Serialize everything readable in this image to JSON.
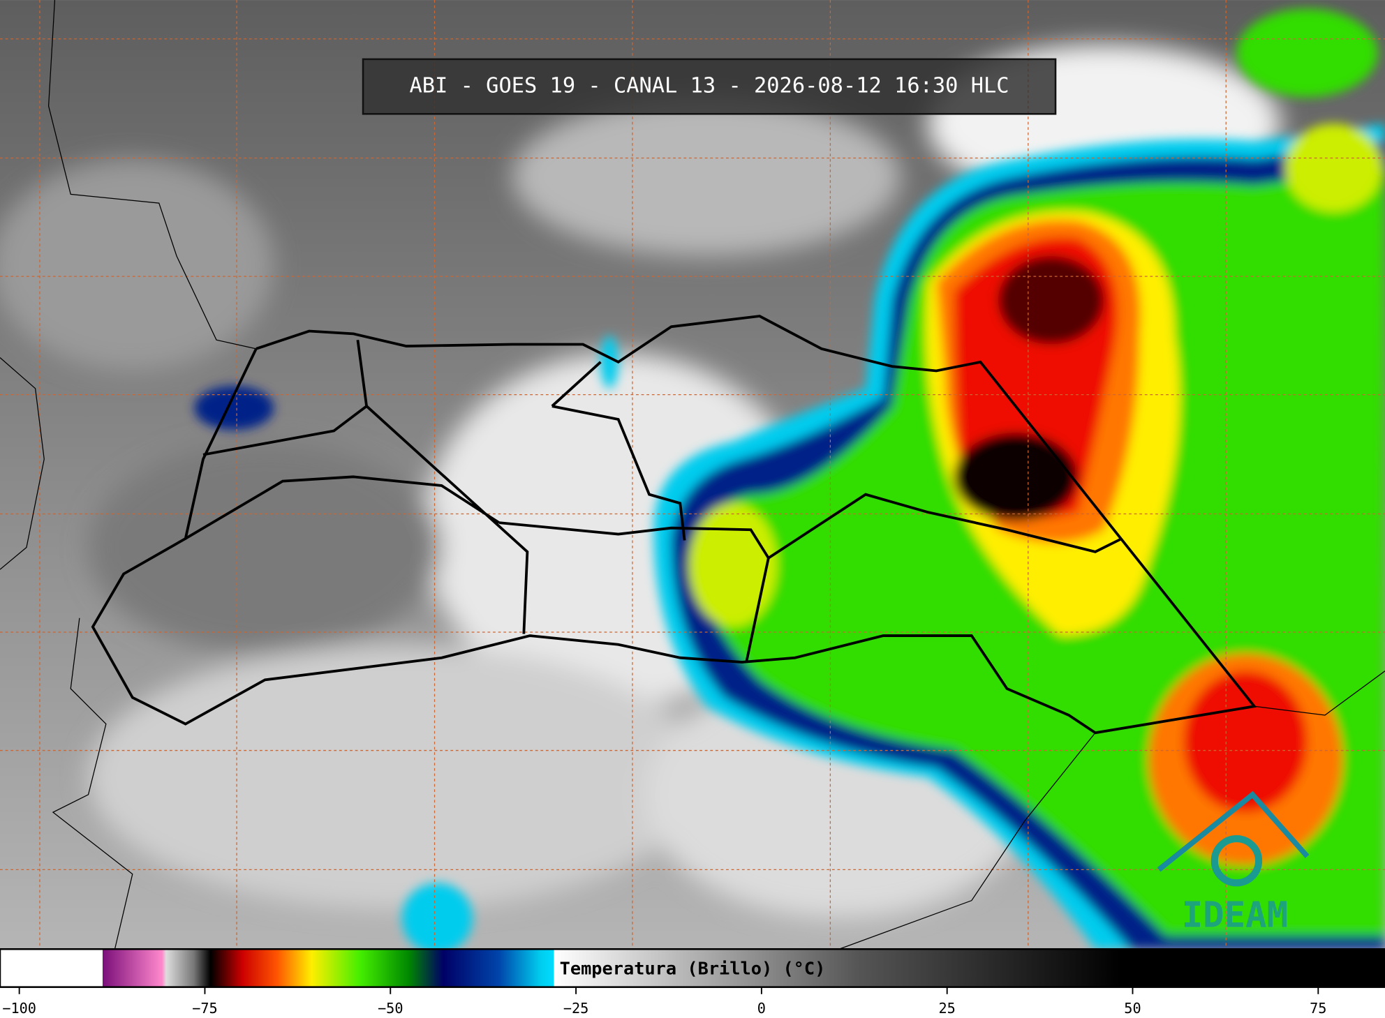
{
  "title": "ABI - GOES 19 - CANAL 13 - 2026-08-12 16:30 HLC",
  "colorbar": {
    "label": "Temperatura (Brillo) (°C)",
    "xlim": [
      -102.6,
      84
    ],
    "ticks": [
      {
        "value": -100,
        "label": "−100"
      },
      {
        "value": -75,
        "label": "−75"
      },
      {
        "value": -50,
        "label": "−50"
      },
      {
        "value": -25,
        "label": "−25"
      },
      0,
      25,
      50,
      75
    ]
  },
  "logo": "IDEAM"
}
